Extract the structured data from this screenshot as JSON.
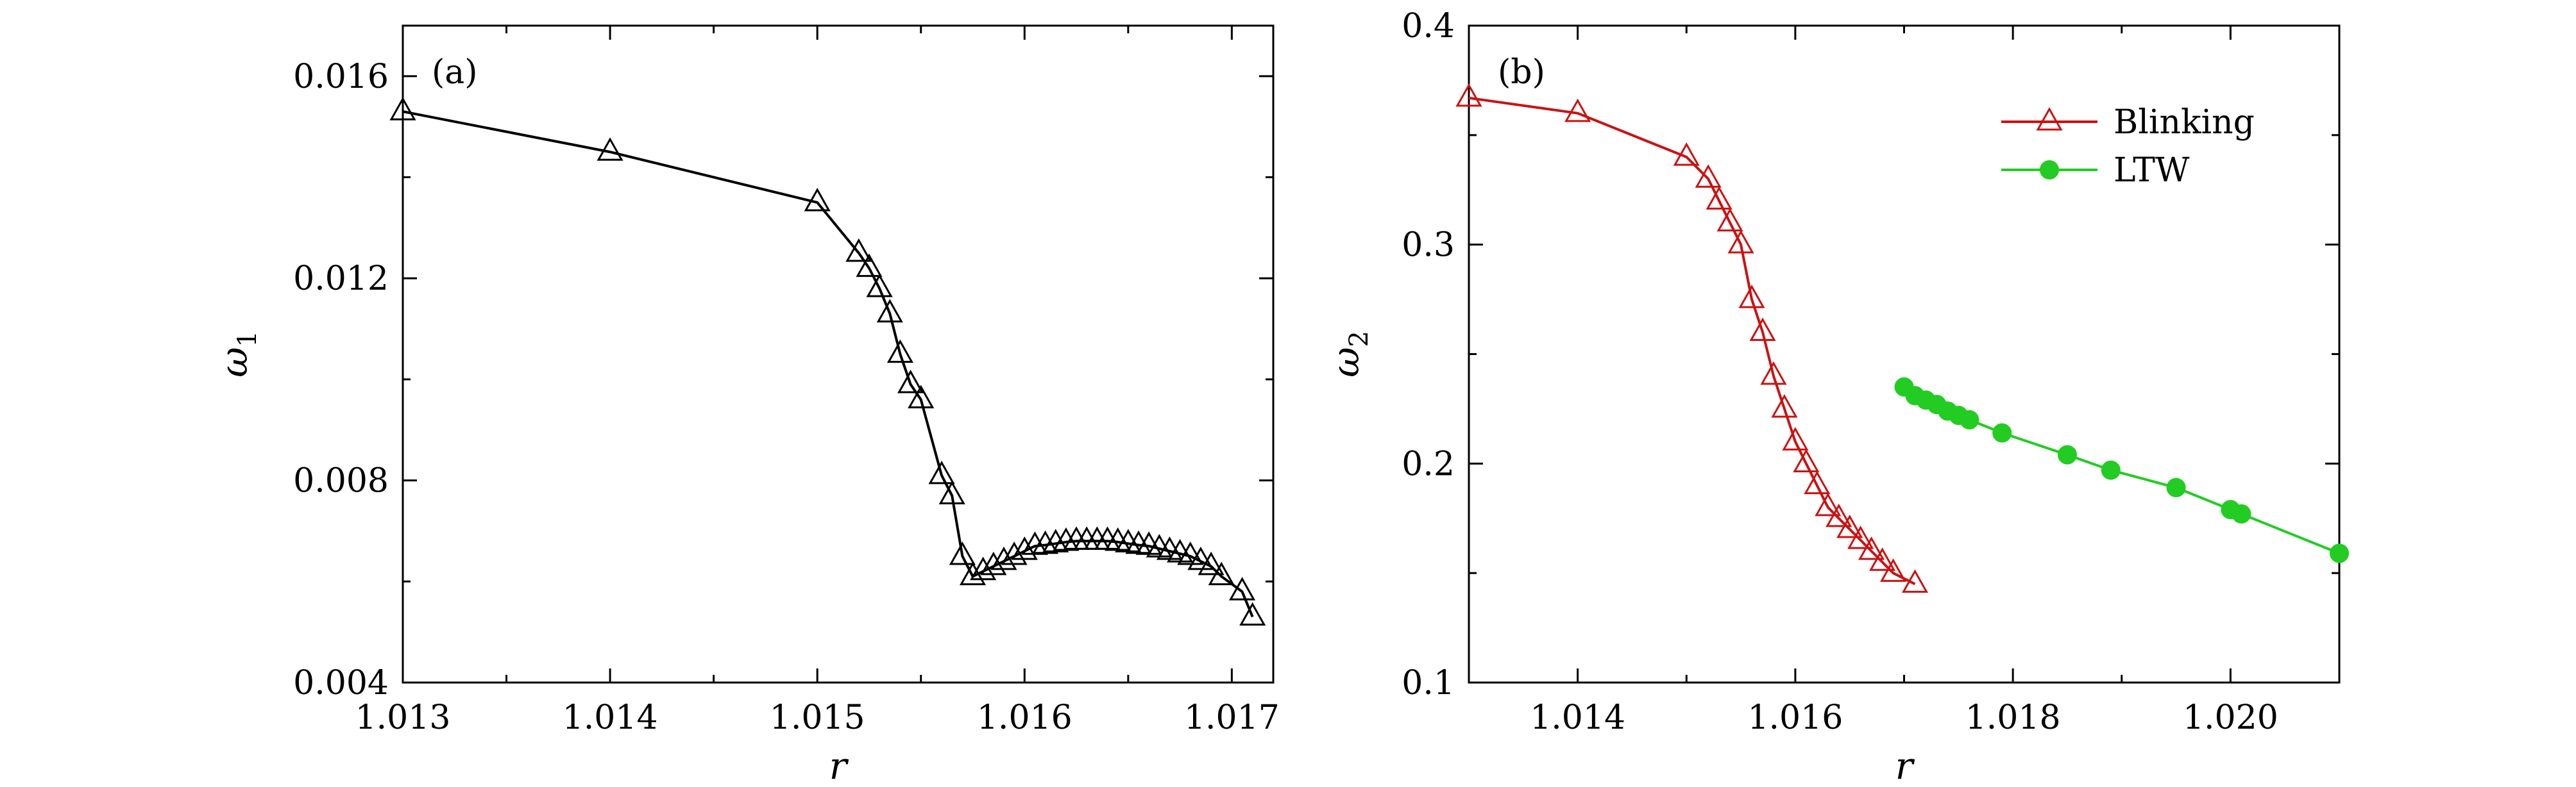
{
  "chart_data": [
    {
      "type": "line",
      "panel_label": "(a)",
      "xlabel": "r",
      "ylabel": "ω1",
      "xlim": [
        1.013,
        1.0172
      ],
      "ylim": [
        0.004,
        0.017
      ],
      "xticks": [
        1.013,
        1.014,
        1.015,
        1.016,
        1.017
      ],
      "xtick_labels": [
        "1.013",
        "1.014",
        "1.015",
        "1.016",
        "1.017"
      ],
      "yticks": [
        0.004,
        0.008,
        0.012,
        0.016
      ],
      "ytick_labels": [
        "0.004",
        "0.008",
        "0.012",
        "0.016"
      ],
      "series": [
        {
          "color": "#000000",
          "marker": "open-triangle",
          "x": [
            1.013,
            1.014,
            1.015,
            1.0152,
            1.01525,
            1.0153,
            1.01535,
            1.0154,
            1.01545,
            1.0155,
            1.0156,
            1.01565,
            1.0157,
            1.01575,
            1.0158,
            1.01585,
            1.0159,
            1.01595,
            1.016,
            1.01605,
            1.0161,
            1.01615,
            1.0162,
            1.01625,
            1.0163,
            1.01635,
            1.0164,
            1.01645,
            1.0165,
            1.01655,
            1.0166,
            1.01665,
            1.0167,
            1.01675,
            1.0168,
            1.01685,
            1.0169,
            1.01695,
            1.01705,
            1.0171
          ],
          "y": [
            0.0153,
            0.0145,
            0.0135,
            0.0125,
            0.0122,
            0.0118,
            0.0113,
            0.0105,
            0.0099,
            0.0096,
            0.0081,
            0.0077,
            0.0065,
            0.0061,
            0.0062,
            0.0063,
            0.0064,
            0.0065,
            0.0066,
            0.0067,
            0.00672,
            0.00675,
            0.00678,
            0.0068,
            0.0068,
            0.0068,
            0.0068,
            0.00678,
            0.00675,
            0.00672,
            0.0067,
            0.00665,
            0.0066,
            0.00655,
            0.0065,
            0.0064,
            0.0063,
            0.0061,
            0.0058,
            0.0053
          ]
        }
      ]
    },
    {
      "type": "line",
      "panel_label": "(b)",
      "xlabel": "r",
      "ylabel": "ω2",
      "xlim": [
        1.013,
        1.021
      ],
      "ylim": [
        0.1,
        0.4
      ],
      "xticks": [
        1.014,
        1.016,
        1.018,
        1.02
      ],
      "xtick_labels": [
        "1.014",
        "1.016",
        "1.018",
        "1.020"
      ],
      "yticks": [
        0.1,
        0.2,
        0.3,
        0.4
      ],
      "ytick_labels": [
        "0.1",
        "0.2",
        "0.3",
        "0.4"
      ],
      "legend_position": "top-right",
      "series": [
        {
          "name": "Blinking",
          "color": "#cc1111",
          "marker": "open-triangle",
          "x": [
            1.013,
            1.014,
            1.015,
            1.0152,
            1.0153,
            1.0154,
            1.0155,
            1.0156,
            1.0157,
            1.0158,
            1.0159,
            1.016,
            1.0161,
            1.0162,
            1.0163,
            1.0164,
            1.0165,
            1.0166,
            1.0167,
            1.0168,
            1.0169,
            1.0171
          ],
          "y": [
            0.367,
            0.36,
            0.34,
            0.33,
            0.32,
            0.31,
            0.3,
            0.275,
            0.26,
            0.24,
            0.225,
            0.21,
            0.2,
            0.19,
            0.18,
            0.175,
            0.17,
            0.165,
            0.16,
            0.155,
            0.15,
            0.145
          ]
        },
        {
          "name": "LTW",
          "color": "#22cc22",
          "marker": "filled-circle",
          "x": [
            1.017,
            1.0171,
            1.0172,
            1.0173,
            1.0174,
            1.0175,
            1.0176,
            1.0179,
            1.0185,
            1.0189,
            1.0195,
            1.02,
            1.0201,
            1.021
          ],
          "y": [
            0.235,
            0.231,
            0.229,
            0.227,
            0.224,
            0.222,
            0.22,
            0.214,
            0.204,
            0.197,
            0.189,
            0.179,
            0.177,
            0.159
          ]
        }
      ]
    }
  ]
}
